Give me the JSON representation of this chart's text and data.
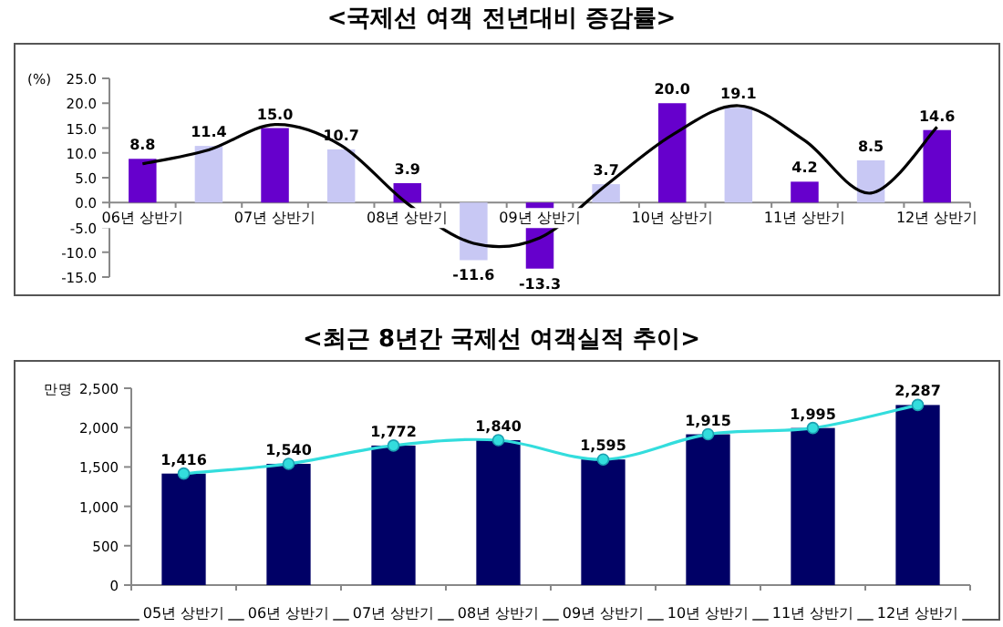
{
  "chart_data": [
    {
      "type": "bar",
      "title": "<국제선 여객 전년대비 증감률>",
      "ylabel": "(%)",
      "categories": [
        "06년 상반기",
        null,
        "07년 상반기",
        null,
        "08년 상반기",
        null,
        "09년 상반기",
        null,
        "10년 상반기",
        null,
        "11년 상반기",
        null,
        "12년 상반기"
      ],
      "series": [
        {
          "type": "bar",
          "colors": [
            "#6600cc",
            "#c8c8f4",
            "#6600cc",
            "#c8c8f4",
            "#6600cc",
            "#c8c8f4",
            "#6600cc",
            "#c8c8f4",
            "#6600cc",
            "#c8c8f4",
            "#6600cc",
            "#c8c8f4",
            "#6600cc"
          ],
          "values": [
            8.8,
            11.4,
            15.0,
            10.7,
            3.9,
            -11.6,
            -13.3,
            3.7,
            20.0,
            19.1,
            4.2,
            8.5,
            14.6
          ],
          "value_labels": [
            "8.8",
            "11.4",
            "15.0",
            "10.7",
            "3.9",
            "-11.6",
            "-13.3",
            "3.7",
            "20.0",
            "19.1",
            "4.2",
            "8.5",
            "14.6"
          ]
        },
        {
          "type": "line",
          "color": "#000000",
          "marker": "none",
          "values": [
            7.8,
            10.6,
            15.7,
            11.5,
            -0.2,
            -8.2,
            -7.1,
            3.5,
            13.6,
            19.5,
            12.5,
            1.9,
            15.2
          ]
        }
      ],
      "ylim": [
        -15,
        25
      ],
      "yticks": [
        {
          "value": -15,
          "label": "-15.0"
        },
        {
          "value": -10,
          "label": "-10.0"
        },
        {
          "value": -5,
          "label": "-5.0"
        },
        {
          "value": 0,
          "label": "0.0"
        },
        {
          "value": 5,
          "label": "5.0"
        },
        {
          "value": 10,
          "label": "10.0"
        },
        {
          "value": 15,
          "label": "15.0"
        },
        {
          "value": 20,
          "label": "20.0"
        },
        {
          "value": 25,
          "label": "25.0"
        }
      ]
    },
    {
      "type": "bar",
      "title": "<최근 8년간 국제선 여객실적 추이>",
      "ylabel": "만명",
      "categories": [
        "05년 상반기",
        "06년 상반기",
        "07년 상반기",
        "08년 상반기",
        "09년 상반기",
        "10년 상반기",
        "11년 상반기",
        "12년 상반기"
      ],
      "series": [
        {
          "type": "bar",
          "color": "#000066",
          "values": [
            1416,
            1540,
            1772,
            1840,
            1595,
            1915,
            1995,
            2287
          ],
          "value_labels": [
            "1,416",
            "1,540",
            "1,772",
            "1,840",
            "1,595",
            "1,915",
            "1,995",
            "2,287"
          ]
        },
        {
          "type": "line",
          "color": "#33dddd",
          "marker": "circle",
          "values": [
            1416,
            1540,
            1772,
            1840,
            1595,
            1915,
            1995,
            2287
          ]
        }
      ],
      "ylim": [
        0,
        2500
      ],
      "yticks": [
        0,
        500,
        {
          "value": 1000,
          "label": "1,000"
        },
        {
          "value": 1500,
          "label": "1,500"
        },
        {
          "value": 2000,
          "label": "2,000"
        },
        {
          "value": 2500,
          "label": "2,500"
        }
      ]
    }
  ]
}
